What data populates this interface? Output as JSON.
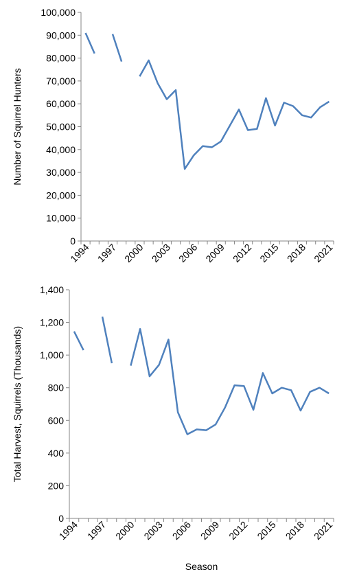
{
  "chart_data": [
    {
      "type": "line",
      "ylabel": "Number of Squirrel Hunters",
      "xlabel": "",
      "ylim": [
        0,
        100000
      ],
      "yticks": [
        0,
        10000,
        20000,
        30000,
        40000,
        50000,
        60000,
        70000,
        80000,
        90000,
        100000
      ],
      "ytick_labels": [
        "0",
        "10,000",
        "20,000",
        "30,000",
        "40,000",
        "50,000",
        "60,000",
        "70,000",
        "80,000",
        "90,000",
        "100,000"
      ],
      "x": [
        1994,
        1995,
        1996,
        1997,
        1998,
        1999,
        2000,
        2001,
        2002,
        2003,
        2004,
        2005,
        2006,
        2007,
        2008,
        2009,
        2010,
        2011,
        2012,
        2013,
        2014,
        2015,
        2016,
        2017,
        2018,
        2019,
        2020,
        2021
      ],
      "xtick_labels": [
        "1994",
        "1997",
        "2000",
        "2003",
        "2006",
        "2009",
        "2012",
        "2015",
        "2018",
        "2021"
      ],
      "xtick_values": [
        1994,
        1997,
        2000,
        2003,
        2006,
        2009,
        2012,
        2015,
        2018,
        2021
      ],
      "series": [
        {
          "values": [
            91000,
            82000,
            null,
            90500,
            78500,
            null,
            72000,
            79000,
            69000,
            62000,
            66000,
            31500,
            37500,
            41500,
            41000,
            43500,
            50500,
            57500,
            48500,
            49000,
            62500,
            50500,
            60500,
            59000,
            55000,
            54000,
            58500,
            61000
          ]
        }
      ],
      "grid": false,
      "color": "#4f81bd"
    },
    {
      "type": "line",
      "ylabel": "Total Harvest, Squirrels (Thousands)",
      "xlabel": "Season",
      "ylim": [
        0,
        1400
      ],
      "yticks": [
        0,
        200,
        400,
        600,
        800,
        1000,
        1200,
        1400
      ],
      "ytick_labels": [
        "0",
        "200",
        "400",
        "600",
        "800",
        "1,000",
        "1,200",
        "1,400"
      ],
      "x": [
        1994,
        1995,
        1996,
        1997,
        1998,
        1999,
        2000,
        2001,
        2002,
        2003,
        2004,
        2005,
        2006,
        2007,
        2008,
        2009,
        2010,
        2011,
        2012,
        2013,
        2014,
        2015,
        2016,
        2017,
        2018,
        2019,
        2020,
        2021
      ],
      "xtick_labels": [
        "1994",
        "1997",
        "2000",
        "2003",
        "2006",
        "2009",
        "2012",
        "2015",
        "2018",
        "2021"
      ],
      "xtick_values": [
        1994,
        1997,
        2000,
        2003,
        2006,
        2009,
        2012,
        2015,
        2018,
        2021
      ],
      "series": [
        {
          "values": [
            1145,
            1030,
            null,
            1235,
            950,
            null,
            935,
            1160,
            870,
            940,
            1095,
            650,
            515,
            545,
            540,
            575,
            680,
            815,
            810,
            665,
            890,
            765,
            800,
            785,
            660,
            775,
            800,
            765
          ]
        }
      ],
      "grid": false,
      "color": "#4f81bd"
    }
  ]
}
